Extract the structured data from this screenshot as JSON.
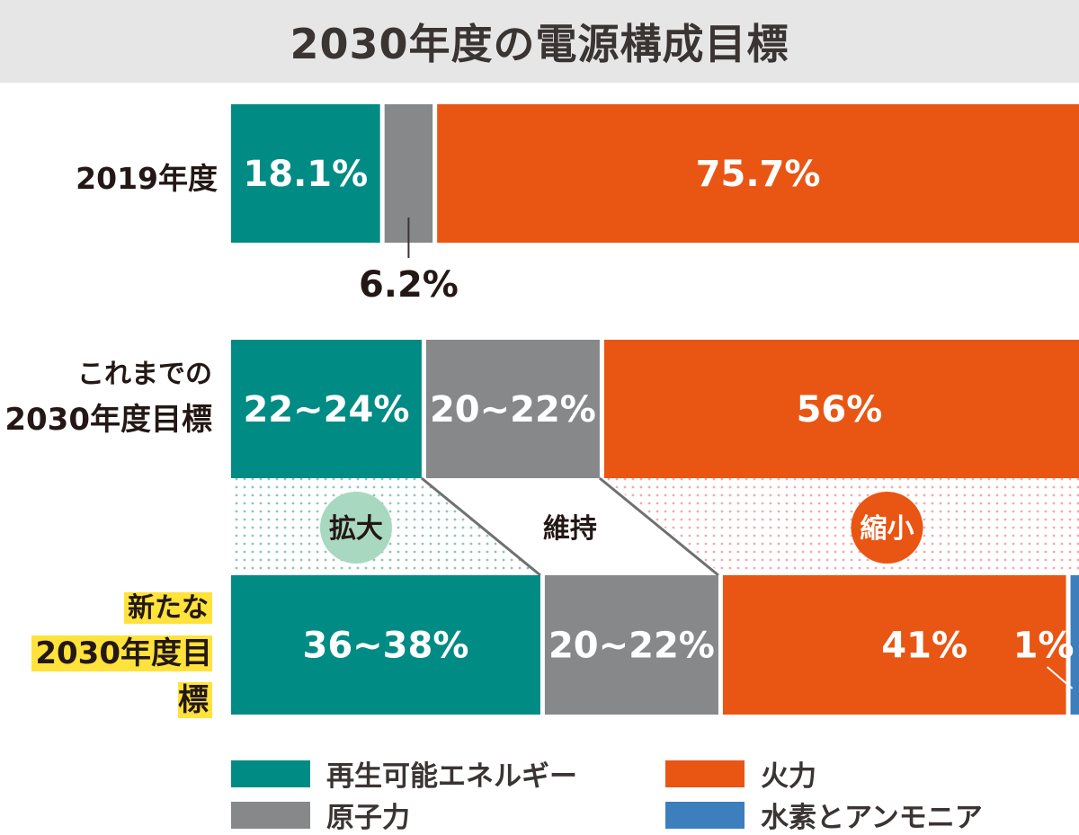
{
  "title": "2030年度の電源構成目標",
  "rows": [
    {
      "label_lines": [
        "2019年度"
      ],
      "highlight": false
    },
    {
      "label_lines": [
        "これまでの",
        "2030年度目標"
      ],
      "highlight": false
    },
    {
      "label_lines": [
        "新たな",
        "2030年度目標"
      ],
      "highlight": true
    }
  ],
  "chart_data": {
    "type": "bar",
    "orientation": "horizontal-stacked",
    "categories": [
      "2019年度",
      "これまでの2030年度目標",
      "新たな2030年度目標"
    ],
    "series": [
      {
        "name": "再生可能エネルギー",
        "color": "#008b84",
        "values": [
          18.1,
          23,
          37
        ],
        "labels": [
          "18.1%",
          "22~24%",
          "36~38%"
        ]
      },
      {
        "name": "原子力",
        "color": "#86888a",
        "values": [
          6.2,
          21,
          21
        ],
        "labels": [
          "6.2%",
          "20~22%",
          "20~22%"
        ]
      },
      {
        "name": "火力",
        "color": "#e95513",
        "values": [
          75.7,
          56,
          41
        ],
        "labels": [
          "75.7%",
          "56%",
          "41%"
        ]
      },
      {
        "name": "水素とアンモニア",
        "color": "#3d7fbd",
        "values": [
          0,
          0,
          1
        ],
        "labels": [
          "",
          "",
          "1%"
        ]
      }
    ],
    "changes": [
      {
        "label": "拡大",
        "circle_color": "#a9d8c1",
        "text_color": "#231815"
      },
      {
        "label": "維持",
        "circle_color": "#ffffff",
        "text_color": "#231815"
      },
      {
        "label": "縮小",
        "circle_color": "#e95513",
        "text_color": "#ffffff"
      }
    ]
  },
  "legend": [
    {
      "label": "再生可能エネルギー",
      "color": "#008b84"
    },
    {
      "label": "火力",
      "color": "#e95513"
    },
    {
      "label": "原子力",
      "color": "#86888a"
    },
    {
      "label": "水素とアンモニア",
      "color": "#3d7fbd"
    }
  ]
}
